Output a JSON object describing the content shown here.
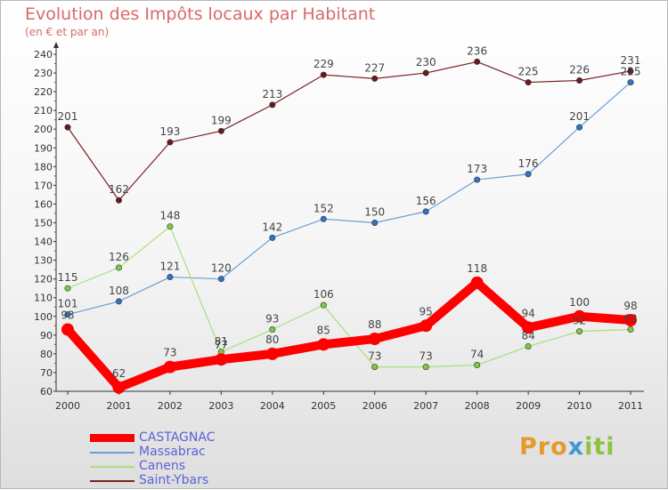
{
  "title": "Evolution des Impôts locaux par Habitant",
  "subtitle": "(en € et par an)",
  "logo": {
    "part1": "Pro",
    "part2": "x",
    "part3": "iti"
  },
  "chart_data": {
    "type": "line",
    "x": [
      "2000",
      "2001",
      "2002",
      "2003",
      "2004",
      "2005",
      "2006",
      "2007",
      "2008",
      "2009",
      "2010",
      "2011"
    ],
    "ylim": [
      60,
      240
    ],
    "yticks": [
      60,
      70,
      80,
      90,
      100,
      110,
      120,
      130,
      140,
      150,
      160,
      170,
      180,
      190,
      200,
      210,
      220,
      230,
      240
    ],
    "grid": false,
    "legend": "bottom-left",
    "series": [
      {
        "name": "Saint-Ybars",
        "color": "#7a2024",
        "marker": "#6a1a1e",
        "width": 1.2,
        "values": [
          201,
          162,
          193,
          199,
          213,
          229,
          227,
          230,
          236,
          225,
          226,
          231
        ],
        "labels": [
          "201",
          "162",
          "193",
          "199",
          "213",
          "229",
          "227",
          "230",
          "236",
          "225",
          "226",
          "231"
        ]
      },
      {
        "name": "Massabrac",
        "color": "#6a9fd4",
        "marker": "#2e74c0",
        "width": 1.2,
        "values": [
          101,
          108,
          121,
          120,
          142,
          152,
          150,
          156,
          173,
          176,
          201,
          225
        ],
        "labels": [
          "101",
          "108",
          "121",
          "120",
          "142",
          "152",
          "150",
          "156",
          "173",
          "176",
          "201",
          "225"
        ]
      },
      {
        "name": "Canens",
        "color": "#a9df7c",
        "marker": "#7ccc3c",
        "width": 1.2,
        "values": [
          115,
          126,
          148,
          81,
          93,
          106,
          73,
          73,
          74,
          84,
          92,
          93
        ],
        "labels": [
          "115",
          "126",
          "148",
          "81",
          "93",
          "106",
          "73",
          "73",
          "74",
          "84",
          "92",
          "93"
        ]
      },
      {
        "name": "CASTAGNAC",
        "color": "#ff0000",
        "marker": "#ff0000",
        "width": 10,
        "values": [
          93,
          62,
          73,
          77,
          80,
          85,
          88,
          95,
          118,
          94,
          100,
          98
        ],
        "labels": [
          "93",
          "62",
          "73",
          "77",
          "80",
          "85",
          "88",
          "95",
          "118",
          "94",
          "100",
          "98"
        ]
      }
    ]
  }
}
